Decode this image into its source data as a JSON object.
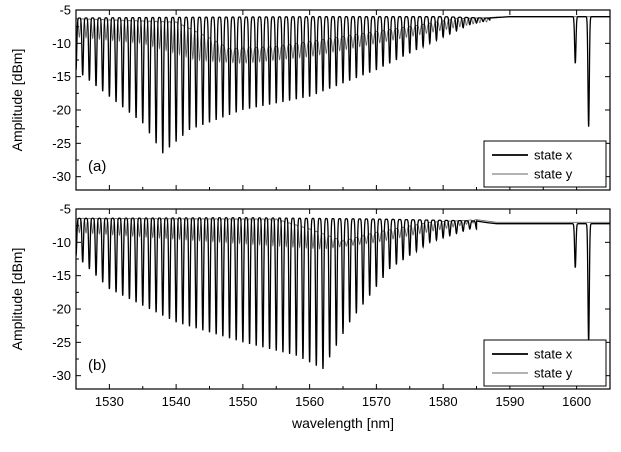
{
  "chart_data": [
    {
      "type": "line",
      "panel_label": "(a)",
      "xlabel": "wavelength [nm]",
      "ylabel": "Amplitude [dBm]",
      "xlim": [
        1525,
        1605
      ],
      "ylim": [
        -32,
        -5
      ],
      "x_ticks": [
        1530,
        1540,
        1550,
        1560,
        1570,
        1580,
        1590,
        1600
      ],
      "y_ticks": [
        -5,
        -10,
        -15,
        -20,
        -25,
        -30
      ],
      "grid": false,
      "legend_position": "bottom-right",
      "fringe_period_nm": 1.0,
      "series": [
        {
          "name": "state x",
          "color": "#000000",
          "phase_nm": 0.0,
          "top_level_dBm": [
            [
              1525,
              -6.2
            ],
            [
              1540,
              -6.1
            ],
            [
              1560,
              -6.0
            ],
            [
              1580,
              -6.0
            ],
            [
              1586,
              -6.2
            ]
          ],
          "dip_depth_envelope_dBm": [
            [
              1525,
              -14
            ],
            [
              1530,
              -18
            ],
            [
              1535,
              -22
            ],
            [
              1538,
              -26.5
            ],
            [
              1542,
              -23
            ],
            [
              1550,
              -20
            ],
            [
              1560,
              -18
            ],
            [
              1570,
              -14
            ],
            [
              1578,
              -10
            ],
            [
              1584,
              -7.2
            ],
            [
              1587,
              -6.5
            ]
          ],
          "dips_end_nm": 1587,
          "features": [
            {
              "x": 1599.8,
              "min_dBm": -13,
              "top_dBm": -6,
              "width_nm": 0.35
            },
            {
              "x": 1601.8,
              "min_dBm": -22.5,
              "top_dBm": -6,
              "width_nm": 0.35
            }
          ],
          "flat_end_dBm": -6.0
        },
        {
          "name": "state y",
          "color": "#666666",
          "phase_nm": 0.5,
          "top_level_dBm": [
            [
              1525,
              -6.3
            ],
            [
              1540,
              -6.8
            ],
            [
              1545,
              -9.2
            ],
            [
              1548,
              -10.8
            ],
            [
              1555,
              -10.5
            ],
            [
              1565,
              -9.0
            ],
            [
              1575,
              -7.5
            ],
            [
              1582,
              -6.3
            ],
            [
              1588,
              -6.1
            ]
          ],
          "dip_depth_envelope_dBm": [
            [
              1525,
              -9
            ],
            [
              1535,
              -10
            ],
            [
              1540,
              -11.5
            ],
            [
              1543,
              -12.5
            ],
            [
              1550,
              -13
            ],
            [
              1560,
              -12
            ],
            [
              1570,
              -10
            ],
            [
              1580,
              -8
            ],
            [
              1586,
              -6.8
            ]
          ],
          "dips_end_nm": 1587,
          "features": [],
          "flat_end_dBm": -6.0
        }
      ]
    },
    {
      "type": "line",
      "panel_label": "(b)",
      "xlabel": "wavelength [nm]",
      "ylabel": "Amplitude [dBm]",
      "xlim": [
        1525,
        1605
      ],
      "ylim": [
        -32,
        -5
      ],
      "x_ticks": [
        1530,
        1540,
        1550,
        1560,
        1570,
        1580,
        1590,
        1600
      ],
      "y_ticks": [
        -5,
        -10,
        -15,
        -20,
        -25,
        -30
      ],
      "grid": false,
      "legend_position": "bottom-right",
      "fringe_period_nm": 1.0,
      "series": [
        {
          "name": "state x",
          "color": "#000000",
          "phase_nm": 0.0,
          "top_level_dBm": [
            [
              1525,
              -6.4
            ],
            [
              1550,
              -6.3
            ],
            [
              1570,
              -6.5
            ],
            [
              1585,
              -6.8
            ],
            [
              1595,
              -7.2
            ],
            [
              1599,
              -7.5
            ]
          ],
          "dip_depth_envelope_dBm": [
            [
              1525,
              -12
            ],
            [
              1530,
              -17
            ],
            [
              1540,
              -22
            ],
            [
              1550,
              -25
            ],
            [
              1558,
              -27
            ],
            [
              1562,
              -29
            ],
            [
              1566,
              -22
            ],
            [
              1572,
              -14
            ],
            [
              1578,
              -10
            ],
            [
              1584,
              -8
            ]
          ],
          "dips_end_nm": 1585,
          "features": [
            {
              "x": 1599.8,
              "min_dBm": -13.8,
              "top_dBm": -7.5,
              "width_nm": 0.35
            },
            {
              "x": 1601.8,
              "min_dBm": -25,
              "top_dBm": -7.5,
              "width_nm": 0.35
            }
          ],
          "flat_end_dBm": -7.2
        },
        {
          "name": "state y",
          "color": "#666666",
          "phase_nm": 0.5,
          "top_level_dBm": [
            [
              1525,
              -6.4
            ],
            [
              1555,
              -6.5
            ],
            [
              1560,
              -8.0
            ],
            [
              1565,
              -9.8
            ],
            [
              1570,
              -8.5
            ],
            [
              1578,
              -7.0
            ],
            [
              1585,
              -6.6
            ]
          ],
          "dip_depth_envelope_dBm": [
            [
              1525,
              -8.5
            ],
            [
              1540,
              -9.5
            ],
            [
              1555,
              -10.5
            ],
            [
              1562,
              -11
            ],
            [
              1570,
              -10
            ],
            [
              1580,
              -8
            ],
            [
              1585,
              -7
            ]
          ],
          "dips_end_nm": 1585,
          "features": [],
          "flat_end_dBm": -7.0
        }
      ]
    }
  ]
}
